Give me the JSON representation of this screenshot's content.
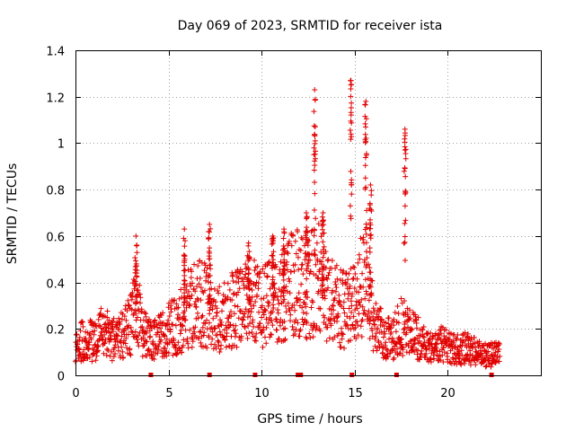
{
  "chart_data": {
    "type": "scatter",
    "title": "Day 069 of 2023, SRMTID for receiver ista",
    "xlabel": "GPS time / hours",
    "ylabel": "SRMTID / TECUs",
    "xlim": [
      0,
      25
    ],
    "ylim": [
      0,
      1.4
    ],
    "xticks": [
      {
        "value": 0,
        "label": "0"
      },
      {
        "value": 5,
        "label": "5"
      },
      {
        "value": 10,
        "label": "10"
      },
      {
        "value": 15,
        "label": "15"
      },
      {
        "value": 20,
        "label": "20"
      }
    ],
    "yticks": [
      {
        "value": 0,
        "label": "0"
      },
      {
        "value": 0.2,
        "label": "0.2"
      },
      {
        "value": 0.4,
        "label": "0.4"
      },
      {
        "value": 0.6,
        "label": "0.6"
      },
      {
        "value": 0.8,
        "label": "0.8"
      },
      {
        "value": 1.0,
        "label": "1"
      },
      {
        "value": 1.2,
        "label": "1.2"
      },
      {
        "value": 1.4,
        "label": "1.4"
      }
    ],
    "grid": true,
    "marker": "+",
    "color": "#e00000",
    "x_span": [
      0.0,
      22.8
    ],
    "profile": [
      [
        0.0,
        0.12
      ],
      [
        0.5,
        0.16
      ],
      [
        1.0,
        0.14
      ],
      [
        1.5,
        0.2
      ],
      [
        2.0,
        0.15
      ],
      [
        2.5,
        0.18
      ],
      [
        3.0,
        0.22
      ],
      [
        3.3,
        0.35
      ],
      [
        3.6,
        0.18
      ],
      [
        4.0,
        0.15
      ],
      [
        4.5,
        0.18
      ],
      [
        5.0,
        0.2
      ],
      [
        5.5,
        0.22
      ],
      [
        6.0,
        0.28
      ],
      [
        6.5,
        0.32
      ],
      [
        7.0,
        0.3
      ],
      [
        7.5,
        0.24
      ],
      [
        8.0,
        0.26
      ],
      [
        8.5,
        0.28
      ],
      [
        9.0,
        0.3
      ],
      [
        9.5,
        0.32
      ],
      [
        10.0,
        0.28
      ],
      [
        10.5,
        0.35
      ],
      [
        11.0,
        0.32
      ],
      [
        11.5,
        0.38
      ],
      [
        12.0,
        0.4
      ],
      [
        12.5,
        0.36
      ],
      [
        13.0,
        0.45
      ],
      [
        13.5,
        0.35
      ],
      [
        14.0,
        0.3
      ],
      [
        14.5,
        0.28
      ],
      [
        15.0,
        0.3
      ],
      [
        15.5,
        0.42
      ],
      [
        16.0,
        0.25
      ],
      [
        16.5,
        0.18
      ],
      [
        17.0,
        0.16
      ],
      [
        17.5,
        0.22
      ],
      [
        18.0,
        0.18
      ],
      [
        18.5,
        0.16
      ],
      [
        19.0,
        0.12
      ],
      [
        19.5,
        0.14
      ],
      [
        20.0,
        0.12
      ],
      [
        20.5,
        0.11
      ],
      [
        21.0,
        0.12
      ],
      [
        21.5,
        0.1
      ],
      [
        22.0,
        0.09
      ],
      [
        22.8,
        0.09
      ]
    ],
    "bursts": [
      {
        "x": 3.25,
        "width": 0.12,
        "peak": 0.6
      },
      {
        "x": 5.85,
        "width": 0.08,
        "peak": 0.63
      },
      {
        "x": 7.2,
        "width": 0.1,
        "peak": 0.65
      },
      {
        "x": 9.3,
        "width": 0.12,
        "peak": 0.57
      },
      {
        "x": 10.6,
        "width": 0.1,
        "peak": 0.6
      },
      {
        "x": 11.2,
        "width": 0.1,
        "peak": 0.63
      },
      {
        "x": 12.4,
        "width": 0.12,
        "peak": 0.7
      },
      {
        "x": 12.85,
        "width": 0.08,
        "peak": 1.23
      },
      {
        "x": 13.3,
        "width": 0.12,
        "peak": 0.7
      },
      {
        "x": 14.8,
        "width": 0.08,
        "peak": 1.27
      },
      {
        "x": 15.6,
        "width": 0.1,
        "peak": 1.18
      },
      {
        "x": 15.85,
        "width": 0.1,
        "peak": 0.82
      },
      {
        "x": 17.7,
        "width": 0.1,
        "peak": 1.06
      }
    ],
    "data_gap_markers": [
      4.05,
      7.2,
      9.65,
      11.95,
      12.1,
      14.85,
      17.25,
      22.35
    ]
  }
}
